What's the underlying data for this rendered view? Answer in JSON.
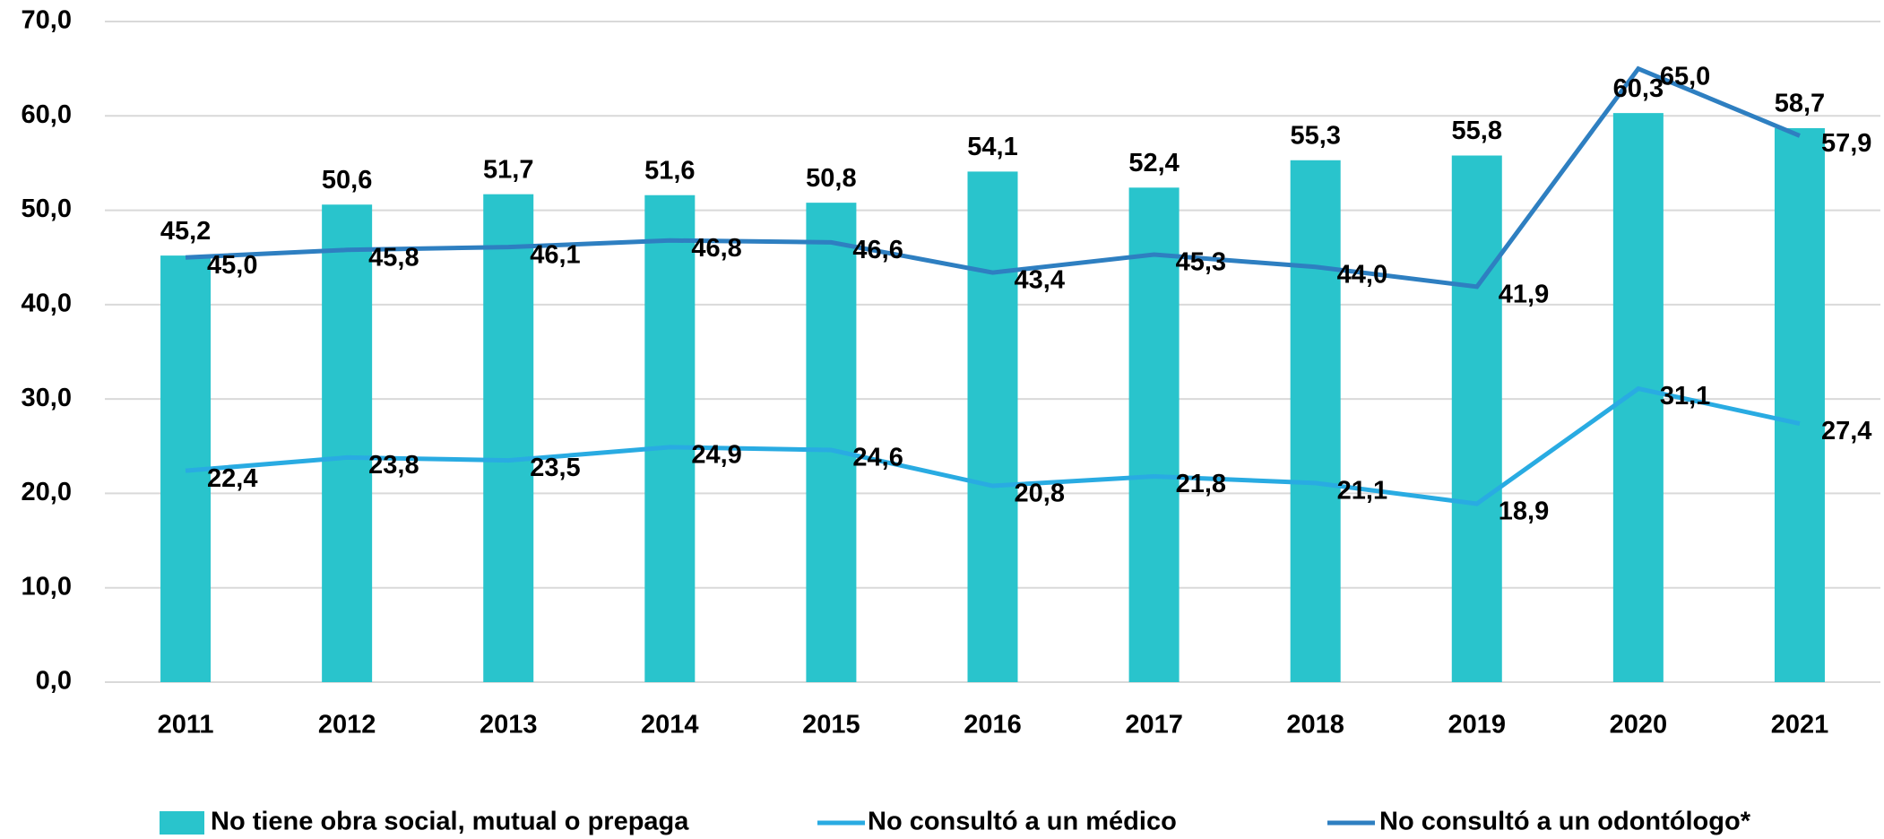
{
  "chart_data": {
    "type": "bar_line",
    "categories": [
      "2011",
      "2012",
      "2013",
      "2014",
      "2015",
      "2016",
      "2017",
      "2018",
      "2019",
      "2020",
      "2021"
    ],
    "series": [
      {
        "name": "No tiene obra social, mutual o prepaga",
        "type": "bar",
        "color": "#29c4cc",
        "values": [
          45.2,
          50.6,
          51.7,
          51.6,
          50.8,
          54.1,
          52.4,
          55.3,
          55.8,
          60.3,
          58.7
        ],
        "value_labels": [
          "45,2",
          "50,6",
          "51,7",
          "51,6",
          "50,8",
          "54,1",
          "52,4",
          "55,3",
          "55,8",
          "60,3",
          "58,7"
        ]
      },
      {
        "name": "No consultó a un médico",
        "type": "line",
        "color": "#29abe2",
        "values": [
          22.4,
          23.8,
          23.5,
          24.9,
          24.6,
          20.8,
          21.8,
          21.1,
          18.9,
          31.1,
          27.4
        ],
        "value_labels": [
          "22,4",
          "23,8",
          "23,5",
          "24,9",
          "24,6",
          "20,8",
          "21,8",
          "21,1",
          "18,9",
          "31,1",
          "27,4"
        ]
      },
      {
        "name": "No consultó a un odontólogo*",
        "type": "line",
        "color": "#2e7fc1",
        "values": [
          45.0,
          45.8,
          46.1,
          46.8,
          46.6,
          43.4,
          45.3,
          44.0,
          41.9,
          65.0,
          57.9
        ],
        "value_labels": [
          "45,0",
          "45,8",
          "46,1",
          "46,8",
          "46,6",
          "43,4",
          "45,3",
          "44,0",
          "41,9",
          "65,0",
          "57,9"
        ]
      }
    ],
    "ylim": [
      0,
      70
    ],
    "yticks": [
      {
        "value": 0,
        "label": "0,0"
      },
      {
        "value": 10,
        "label": "10,0"
      },
      {
        "value": 20,
        "label": "20,0"
      },
      {
        "value": 30,
        "label": "30,0"
      },
      {
        "value": 40,
        "label": "40,0"
      },
      {
        "value": 50,
        "label": "50,0"
      },
      {
        "value": 60,
        "label": "60,0"
      },
      {
        "value": 70,
        "label": "70,0"
      }
    ],
    "grid": true,
    "legend": "bottom"
  }
}
